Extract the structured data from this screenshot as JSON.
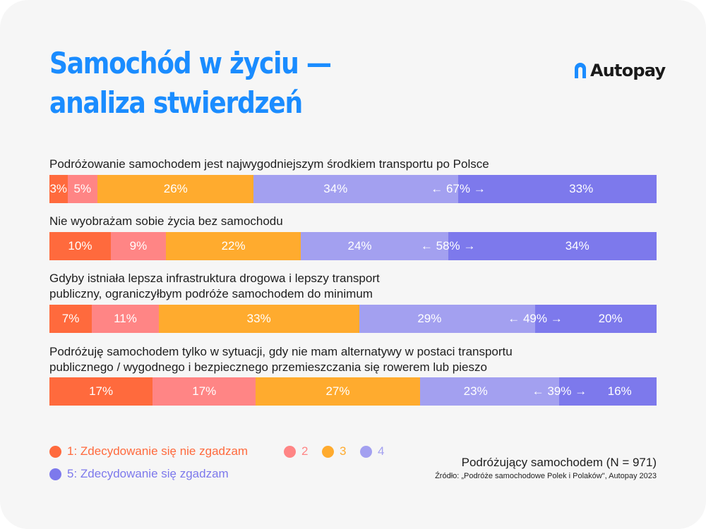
{
  "title": {
    "line1": "Samochód w życiu —",
    "line2": "analiza stwierdzeń",
    "color": "#1a8cff"
  },
  "logo": {
    "text": "Autopay",
    "color": "#1a8cff"
  },
  "chart_data": {
    "type": "bar",
    "orientation": "horizontal",
    "stacked": true,
    "categories": [
      "Podróżowanie samochodem jest najwygodniejszym środkiem transportu po Polsce",
      "Nie wyobrażam sobie życia bez samochodu",
      "Gdyby istniała lepsza infrastruktura drogowa i lepszy transport publiczny, ograniczyłbym podróże samochodem do minimum",
      "Podróżuję samochodem tylko w sytuacji, gdy nie mam alternatywy w postaci transportu publicznego / wygodnego i bezpiecznego przemieszczania się rowerem lub pieszo"
    ],
    "statement_lines": [
      [
        "Podróżowanie samochodem jest najwygodniejszym środkiem transportu po Polsce"
      ],
      [
        "Nie wyobrażam sobie życia bez samochodu"
      ],
      [
        "Gdyby istniała lepsza infrastruktura drogowa i lepszy transport",
        "publiczny, ograniczyłbym podróże samochodem do minimum"
      ],
      [
        "Podróżuję samochodem tylko w sytuacji, gdy nie mam alternatywy w postaci transportu",
        "publicznego / wygodnego i bezpiecznego przemieszczania się rowerem lub pieszo"
      ]
    ],
    "series": [
      {
        "name": "1: Zdecydowanie się nie zgadzam",
        "color": "#ff6a3d",
        "values": [
          3,
          10,
          7,
          17
        ]
      },
      {
        "name": "2",
        "color": "#ff8585",
        "values": [
          5,
          9,
          11,
          17
        ]
      },
      {
        "name": "3",
        "color": "#ffab2e",
        "values": [
          26,
          22,
          33,
          27
        ]
      },
      {
        "name": "4",
        "color": "#a3a0f0",
        "values": [
          34,
          24,
          29,
          23
        ]
      },
      {
        "name": "5: Zdecydowanie się zgadzam",
        "color": "#7d79ec",
        "values": [
          33,
          34,
          20,
          16
        ]
      }
    ],
    "agree_totals": [
      67,
      58,
      49,
      39
    ],
    "value_suffix": "%",
    "agree_format": "← {v}% →",
    "legend_position": "bottom-left",
    "legend_text_colors": [
      "#ff6a3d",
      "#ff8585",
      "#ffab2e",
      "#a3a0f0",
      "#7d79ec"
    ]
  },
  "footer": {
    "sample": "Podróżujący samochodem (N = 971)",
    "source": "Źródło: „Podróże samochodowe Polek i Polaków\", Autopay 2023"
  }
}
